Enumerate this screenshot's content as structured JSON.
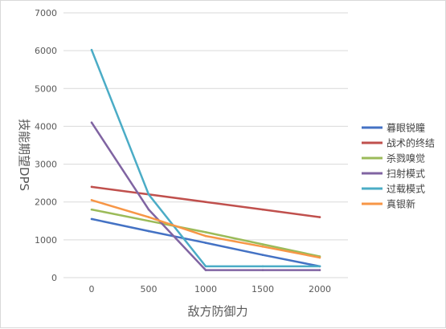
{
  "chart_data": {
    "type": "line",
    "title": "",
    "xlabel": "敌方防御力",
    "ylabel": "技能期望DPS",
    "x": [
      0,
      500,
      1000,
      1500,
      2000
    ],
    "ylim": [
      0,
      7000
    ],
    "yticks": [
      0,
      1000,
      2000,
      3000,
      4000,
      5000,
      6000,
      7000
    ],
    "grid": true,
    "legend_position": "right",
    "series": [
      {
        "name": "暮眼锐瞳",
        "color": "#4472c4",
        "values": [
          1550,
          1230,
          920,
          600,
          300
        ]
      },
      {
        "name": "战术的终结",
        "color": "#c0504d",
        "values": [
          2400,
          2200,
          2000,
          1800,
          1600
        ]
      },
      {
        "name": "杀戮嗅觉",
        "color": "#9bbb59",
        "values": [
          1800,
          1500,
          1200,
          880,
          560
        ]
      },
      {
        "name": "扫射模式",
        "color": "#8064a2",
        "values": [
          4100,
          1800,
          200,
          200,
          200
        ]
      },
      {
        "name": "过载模式",
        "color": "#4bacc6",
        "values": [
          6020,
          2200,
          300,
          300,
          300
        ]
      },
      {
        "name": "真银新",
        "color": "#f79646",
        "values": [
          2050,
          1600,
          1100,
          820,
          530
        ]
      }
    ]
  }
}
